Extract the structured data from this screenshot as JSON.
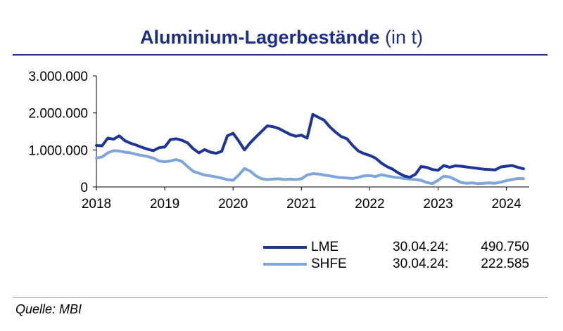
{
  "chart_data": {
    "type": "line",
    "title_main": "Aluminium-Lagerbestände",
    "title_unit": "(in t)",
    "x_ticks": [
      "2018",
      "2019",
      "2020",
      "2021",
      "2022",
      "2023",
      "2024"
    ],
    "y_ticks": [
      "0",
      "1.000.000",
      "2.000.000",
      "3.000.000"
    ],
    "xlim": [
      "2018-01",
      "2024-05"
    ],
    "ylim": [
      0,
      3000000
    ],
    "grid": false,
    "series": [
      {
        "name": "LME",
        "color": "#1b3598",
        "date_label": "30.04.24:",
        "last_value": "490.750",
        "points": [
          [
            "2018-01",
            1120000
          ],
          [
            "2018-02",
            1110000
          ],
          [
            "2018-03",
            1320000
          ],
          [
            "2018-04",
            1290000
          ],
          [
            "2018-05",
            1380000
          ],
          [
            "2018-06",
            1250000
          ],
          [
            "2018-07",
            1180000
          ],
          [
            "2018-08",
            1130000
          ],
          [
            "2018-09",
            1070000
          ],
          [
            "2018-10",
            1020000
          ],
          [
            "2018-11",
            980000
          ],
          [
            "2018-12",
            1060000
          ],
          [
            "2019-01",
            1080000
          ],
          [
            "2019-02",
            1280000
          ],
          [
            "2019-03",
            1300000
          ],
          [
            "2019-04",
            1260000
          ],
          [
            "2019-05",
            1190000
          ],
          [
            "2019-06",
            1030000
          ],
          [
            "2019-07",
            920000
          ],
          [
            "2019-08",
            1010000
          ],
          [
            "2019-09",
            940000
          ],
          [
            "2019-10",
            910000
          ],
          [
            "2019-11",
            960000
          ],
          [
            "2019-12",
            1380000
          ],
          [
            "2020-01",
            1450000
          ],
          [
            "2020-02",
            1240000
          ],
          [
            "2020-03",
            1000000
          ],
          [
            "2020-04",
            1190000
          ],
          [
            "2020-05",
            1350000
          ],
          [
            "2020-06",
            1500000
          ],
          [
            "2020-07",
            1650000
          ],
          [
            "2020-08",
            1630000
          ],
          [
            "2020-09",
            1580000
          ],
          [
            "2020-10",
            1500000
          ],
          [
            "2020-11",
            1420000
          ],
          [
            "2020-12",
            1370000
          ],
          [
            "2021-01",
            1400000
          ],
          [
            "2021-02",
            1320000
          ],
          [
            "2021-03",
            1960000
          ],
          [
            "2021-04",
            1880000
          ],
          [
            "2021-05",
            1800000
          ],
          [
            "2021-06",
            1620000
          ],
          [
            "2021-07",
            1480000
          ],
          [
            "2021-08",
            1360000
          ],
          [
            "2021-09",
            1300000
          ],
          [
            "2021-10",
            1120000
          ],
          [
            "2021-11",
            970000
          ],
          [
            "2021-12",
            900000
          ],
          [
            "2022-01",
            850000
          ],
          [
            "2022-02",
            780000
          ],
          [
            "2022-03",
            650000
          ],
          [
            "2022-04",
            550000
          ],
          [
            "2022-05",
            480000
          ],
          [
            "2022-06",
            380000
          ],
          [
            "2022-07",
            300000
          ],
          [
            "2022-08",
            260000
          ],
          [
            "2022-09",
            340000
          ],
          [
            "2022-10",
            550000
          ],
          [
            "2022-11",
            530000
          ],
          [
            "2022-12",
            470000
          ],
          [
            "2023-01",
            450000
          ],
          [
            "2023-02",
            580000
          ],
          [
            "2023-03",
            530000
          ],
          [
            "2023-04",
            570000
          ],
          [
            "2023-05",
            560000
          ],
          [
            "2023-06",
            540000
          ],
          [
            "2023-07",
            520000
          ],
          [
            "2023-08",
            500000
          ],
          [
            "2023-09",
            480000
          ],
          [
            "2023-10",
            470000
          ],
          [
            "2023-11",
            460000
          ],
          [
            "2023-12",
            540000
          ],
          [
            "2024-01",
            560000
          ],
          [
            "2024-02",
            580000
          ],
          [
            "2024-03",
            530000
          ],
          [
            "2024-04",
            490750
          ]
        ]
      },
      {
        "name": "SHFE",
        "color": "#7ea6dc",
        "date_label": "30.04.24:",
        "last_value": "222.585",
        "points": [
          [
            "2018-01",
            780000
          ],
          [
            "2018-02",
            810000
          ],
          [
            "2018-03",
            920000
          ],
          [
            "2018-04",
            980000
          ],
          [
            "2018-05",
            970000
          ],
          [
            "2018-06",
            940000
          ],
          [
            "2018-07",
            920000
          ],
          [
            "2018-08",
            880000
          ],
          [
            "2018-09",
            850000
          ],
          [
            "2018-10",
            820000
          ],
          [
            "2018-11",
            780000
          ],
          [
            "2018-12",
            700000
          ],
          [
            "2019-01",
            680000
          ],
          [
            "2019-02",
            700000
          ],
          [
            "2019-03",
            740000
          ],
          [
            "2019-04",
            690000
          ],
          [
            "2019-05",
            550000
          ],
          [
            "2019-06",
            420000
          ],
          [
            "2019-07",
            370000
          ],
          [
            "2019-08",
            320000
          ],
          [
            "2019-09",
            300000
          ],
          [
            "2019-10",
            270000
          ],
          [
            "2019-11",
            240000
          ],
          [
            "2019-12",
            200000
          ],
          [
            "2020-01",
            180000
          ],
          [
            "2020-02",
            320000
          ],
          [
            "2020-03",
            500000
          ],
          [
            "2020-04",
            430000
          ],
          [
            "2020-05",
            300000
          ],
          [
            "2020-06",
            220000
          ],
          [
            "2020-07",
            200000
          ],
          [
            "2020-08",
            210000
          ],
          [
            "2020-09",
            220000
          ],
          [
            "2020-10",
            200000
          ],
          [
            "2020-11",
            210000
          ],
          [
            "2020-12",
            200000
          ],
          [
            "2021-01",
            220000
          ],
          [
            "2021-02",
            320000
          ],
          [
            "2021-03",
            360000
          ],
          [
            "2021-04",
            350000
          ],
          [
            "2021-05",
            320000
          ],
          [
            "2021-06",
            300000
          ],
          [
            "2021-07",
            270000
          ],
          [
            "2021-08",
            250000
          ],
          [
            "2021-09",
            240000
          ],
          [
            "2021-10",
            230000
          ],
          [
            "2021-11",
            260000
          ],
          [
            "2021-12",
            300000
          ],
          [
            "2022-01",
            310000
          ],
          [
            "2022-02",
            280000
          ],
          [
            "2022-03",
            330000
          ],
          [
            "2022-04",
            300000
          ],
          [
            "2022-05",
            270000
          ],
          [
            "2022-06",
            250000
          ],
          [
            "2022-07",
            230000
          ],
          [
            "2022-08",
            210000
          ],
          [
            "2022-09",
            200000
          ],
          [
            "2022-10",
            180000
          ],
          [
            "2022-11",
            120000
          ],
          [
            "2022-12",
            90000
          ],
          [
            "2023-01",
            180000
          ],
          [
            "2023-02",
            290000
          ],
          [
            "2023-03",
            270000
          ],
          [
            "2023-04",
            200000
          ],
          [
            "2023-05",
            120000
          ],
          [
            "2023-06",
            100000
          ],
          [
            "2023-07",
            110000
          ],
          [
            "2023-08",
            90000
          ],
          [
            "2023-09",
            100000
          ],
          [
            "2023-10",
            110000
          ],
          [
            "2023-11",
            100000
          ],
          [
            "2023-12",
            130000
          ],
          [
            "2024-01",
            170000
          ],
          [
            "2024-02",
            200000
          ],
          [
            "2024-03",
            230000
          ],
          [
            "2024-04",
            222585
          ]
        ]
      }
    ]
  },
  "source": "Quelle: MBI"
}
